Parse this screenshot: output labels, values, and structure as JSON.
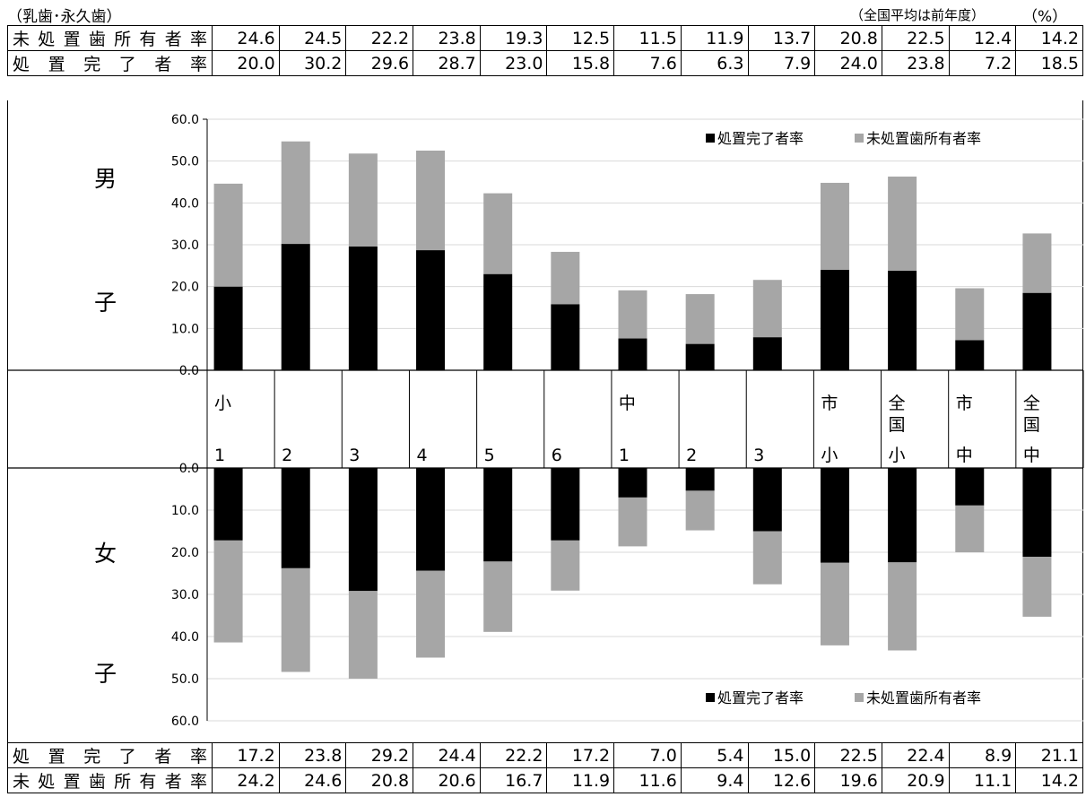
{
  "header": {
    "left_note": "（乳歯･永久歯）",
    "right_note": "（全国平均は前年度）",
    "unit": "（%）"
  },
  "rows": {
    "male_untreated_label": "未処置歯所有者率",
    "male_treated_label": "処置完了者率",
    "female_treated_label": "処置完了者率",
    "female_untreated_label": "未処置歯所有者率"
  },
  "side_labels": {
    "male_top": "男",
    "male_bottom": "子",
    "female_top": "女",
    "female_bottom": "子"
  },
  "legend": {
    "treated": "処置完了者率",
    "untreated": "未処置歯所有者率"
  },
  "categories": [
    {
      "top": "小",
      "bottom": "1"
    },
    {
      "top": "",
      "bottom": "2"
    },
    {
      "top": "",
      "bottom": "3"
    },
    {
      "top": "",
      "bottom": "4"
    },
    {
      "top": "",
      "bottom": "5"
    },
    {
      "top": "",
      "bottom": "6"
    },
    {
      "top": "中",
      "bottom": "1"
    },
    {
      "top": "",
      "bottom": "2"
    },
    {
      "top": "",
      "bottom": "3"
    },
    {
      "top": "市",
      "bottom": "小"
    },
    {
      "top": "全\n国",
      "bottom": "小"
    },
    {
      "top": "市",
      "bottom": "中"
    },
    {
      "top": "全\n国",
      "bottom": "中"
    }
  ],
  "colors": {
    "treated": "#000000",
    "untreated": "#a6a6a6",
    "grid": "#d9d9d9"
  },
  "chart_data": {
    "type": "bar",
    "stacked": true,
    "y_ticks": [
      "60.0",
      "50.0",
      "40.0",
      "30.0",
      "20.0",
      "10.0",
      "0.0"
    ],
    "ylim": [
      0,
      60
    ],
    "male": {
      "series": [
        {
          "name": "処置完了者率",
          "values": [
            20.0,
            30.2,
            29.6,
            28.7,
            23.0,
            15.8,
            7.6,
            6.3,
            7.9,
            24.0,
            23.8,
            7.2,
            18.5
          ]
        },
        {
          "name": "未処置歯所有者率",
          "values": [
            24.6,
            24.5,
            22.2,
            23.8,
            19.3,
            12.5,
            11.5,
            11.9,
            13.7,
            20.8,
            22.5,
            12.4,
            14.2
          ]
        }
      ]
    },
    "female": {
      "y_ticks": [
        "0.0",
        "10.0",
        "20.0",
        "30.0",
        "40.0",
        "50.0",
        "60.0"
      ],
      "series": [
        {
          "name": "処置完了者率",
          "values": [
            17.2,
            23.8,
            29.2,
            24.4,
            22.2,
            17.2,
            7.0,
            5.4,
            15.0,
            22.5,
            22.4,
            8.9,
            21.1
          ]
        },
        {
          "name": "未処置歯所有者率",
          "values": [
            24.2,
            24.6,
            20.8,
            20.6,
            16.7,
            11.9,
            11.6,
            9.4,
            12.6,
            19.6,
            20.9,
            11.1,
            14.2
          ]
        }
      ]
    }
  }
}
